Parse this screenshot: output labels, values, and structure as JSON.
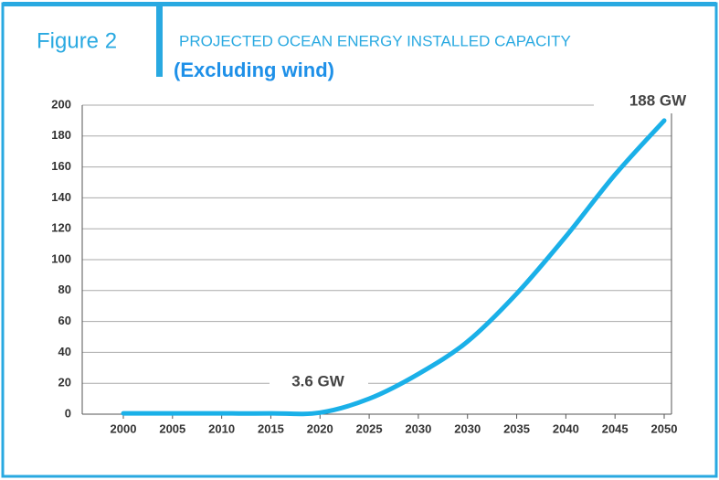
{
  "chart_data": {
    "type": "line",
    "figure_label": "Figure 2",
    "title": "PROJECTED OCEAN ENERGY INSTALLED CAPACITY",
    "subtitle": "(Excluding wind)",
    "categories": [
      "2000",
      "2005",
      "2010",
      "2015",
      "2020",
      "2025",
      "2030",
      "2030",
      "2035",
      "2040",
      "2045",
      "2050"
    ],
    "series": [
      {
        "name": "Installed capacity",
        "color": "#1ab0e8",
        "values": [
          0.5,
          0.5,
          0.5,
          0.5,
          1,
          10,
          26,
          47,
          78,
          115,
          155,
          190
        ]
      }
    ],
    "ylim": [
      0,
      200
    ],
    "yticks": [
      0,
      20,
      40,
      60,
      80,
      100,
      120,
      140,
      160,
      180,
      200
    ],
    "grid": true,
    "annotations": [
      "188 GW",
      "3.6 GW"
    ]
  }
}
